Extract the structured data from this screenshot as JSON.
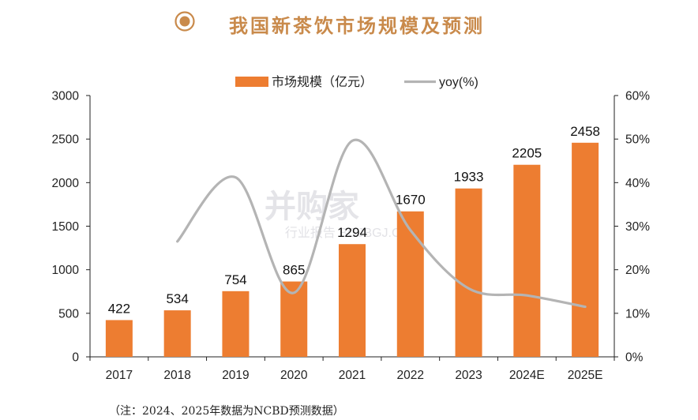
{
  "header": {
    "title": "我国新茶饮市场规模及预测"
  },
  "watermark": {
    "main": "并购家",
    "sub": "行业报告 BGJBGJ.CN"
  },
  "footnote": "（注：2024、2025年数据为NCBD预测数据）",
  "colors": {
    "bar": "#ed7d31",
    "line": "#b4b4b4",
    "title": "#c98a4b",
    "axis": "#222222"
  },
  "chart_data": {
    "type": "bar",
    "categories": [
      "2017",
      "2018",
      "2019",
      "2020",
      "2021",
      "2022",
      "2023",
      "2024E",
      "2025E"
    ],
    "series": [
      {
        "name": "市场规模（亿元）",
        "type": "bar",
        "axis": "left",
        "values": [
          422,
          534,
          754,
          865,
          1294,
          1670,
          1933,
          2205,
          2458
        ]
      },
      {
        "name": "yoy(%)",
        "type": "line",
        "axis": "right",
        "values": [
          null,
          26.5,
          41.2,
          14.7,
          49.6,
          29.1,
          15.7,
          14.1,
          11.5
        ]
      }
    ],
    "y_left": {
      "min": 0,
      "max": 3000,
      "ticks": [
        0,
        500,
        1000,
        1500,
        2000,
        2500,
        3000
      ]
    },
    "y_right": {
      "min": 0,
      "max": 60,
      "ticks": [
        "0%",
        "10%",
        "20%",
        "30%",
        "40%",
        "50%",
        "60%"
      ]
    },
    "legend_position": "top-center",
    "grid": false
  }
}
